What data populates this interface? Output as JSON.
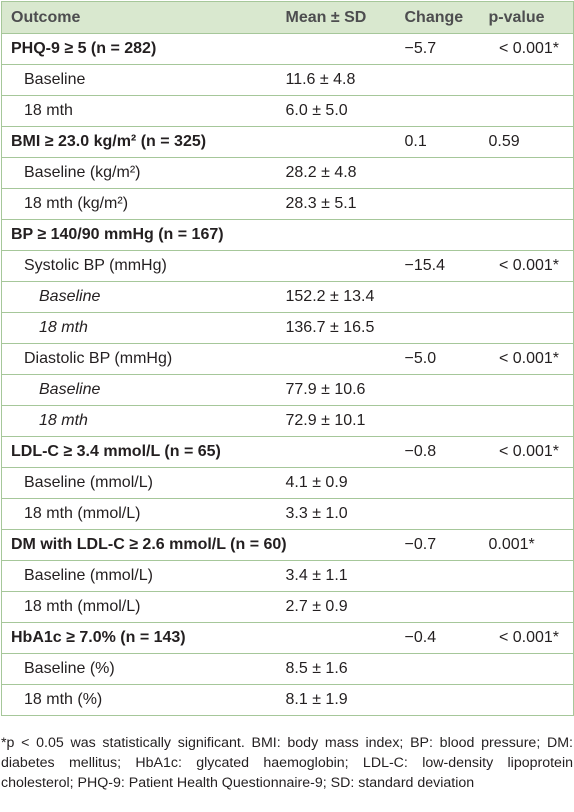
{
  "table": {
    "headers": [
      "Outcome",
      "Mean ± SD",
      "Change",
      "p-value"
    ],
    "rows": [
      {
        "level": 0,
        "outcome": "PHQ-9 ≥ 5 (n = 282)",
        "mean": "",
        "change": "−5.7",
        "p": "< 0.001*",
        "p_align": "right"
      },
      {
        "level": 1,
        "outcome": "Baseline",
        "mean": "11.6 ± 4.8",
        "change": "",
        "p": ""
      },
      {
        "level": 1,
        "outcome": "18 mth",
        "mean": "6.0 ± 5.0",
        "change": "",
        "p": ""
      },
      {
        "level": 0,
        "outcome": "BMI ≥ 23.0 kg/m² (n = 325)",
        "mean": "",
        "change": "0.1",
        "p": "0.59",
        "p_align": "left"
      },
      {
        "level": 1,
        "outcome": "Baseline (kg/m²)",
        "mean": "28.2 ± 4.8",
        "change": "",
        "p": ""
      },
      {
        "level": 1,
        "outcome": "18 mth (kg/m²)",
        "mean": "28.3 ± 5.1",
        "change": "",
        "p": ""
      },
      {
        "level": 0,
        "outcome": "BP ≥ 140/90 mmHg (n = 167)",
        "mean": "",
        "change": "",
        "p": ""
      },
      {
        "level": 1,
        "outcome": "Systolic BP (mmHg)",
        "mean": "",
        "change": "−15.4",
        "p": "< 0.001*",
        "p_align": "right"
      },
      {
        "level": 2,
        "outcome": "Baseline",
        "mean": "152.2 ± 13.4",
        "change": "",
        "p": ""
      },
      {
        "level": 2,
        "outcome": "18 mth",
        "mean": "136.7 ± 16.5",
        "change": "",
        "p": ""
      },
      {
        "level": 1,
        "outcome": "Diastolic BP (mmHg)",
        "mean": "",
        "change": "−5.0",
        "p": "< 0.001*",
        "p_align": "right"
      },
      {
        "level": 2,
        "outcome": "Baseline",
        "mean": "77.9 ± 10.6",
        "change": "",
        "p": ""
      },
      {
        "level": 2,
        "outcome": "18 mth",
        "mean": "72.9 ± 10.1",
        "change": "",
        "p": ""
      },
      {
        "level": 0,
        "outcome": "LDL-C ≥ 3.4 mmol/L (n = 65)",
        "mean": "",
        "change": "−0.8",
        "p": "< 0.001*",
        "p_align": "right"
      },
      {
        "level": 1,
        "outcome": "Baseline (mmol/L)",
        "mean": "4.1 ± 0.9",
        "change": "",
        "p": ""
      },
      {
        "level": 1,
        "outcome": "18 mth (mmol/L)",
        "mean": "3.3 ± 1.0",
        "change": "",
        "p": ""
      },
      {
        "level": 0,
        "outcome": "DM with LDL-C ≥ 2.6 mmol/L (n = 60)",
        "mean": "",
        "change": "−0.7",
        "p": "0.001*",
        "p_align": "left"
      },
      {
        "level": 1,
        "outcome": "Baseline (mmol/L)",
        "mean": "3.4 ± 1.1",
        "change": "",
        "p": ""
      },
      {
        "level": 1,
        "outcome": "18 mth (mmol/L)",
        "mean": "2.7 ± 0.9",
        "change": "",
        "p": ""
      },
      {
        "level": 0,
        "outcome": "HbA1c ≥ 7.0% (n = 143)",
        "mean": "",
        "change": "−0.4",
        "p": "< 0.001*",
        "p_align": "right"
      },
      {
        "level": 1,
        "outcome": "Baseline (%)",
        "mean": "8.5 ± 1.6",
        "change": "",
        "p": ""
      },
      {
        "level": 1,
        "outcome": "18 mth (%)",
        "mean": "8.1 ± 1.9",
        "change": "",
        "p": ""
      }
    ]
  },
  "footnote": "*p < 0.05 was statistically significant. BMI: body mass index; BP: blood pressure; DM: diabetes mellitus; HbA1c: glycated haemoglobin; LDL-C: low-density lipoprotein cholesterol; PHQ-9: Patient Health Questionnaire-9; SD: standard deviation"
}
